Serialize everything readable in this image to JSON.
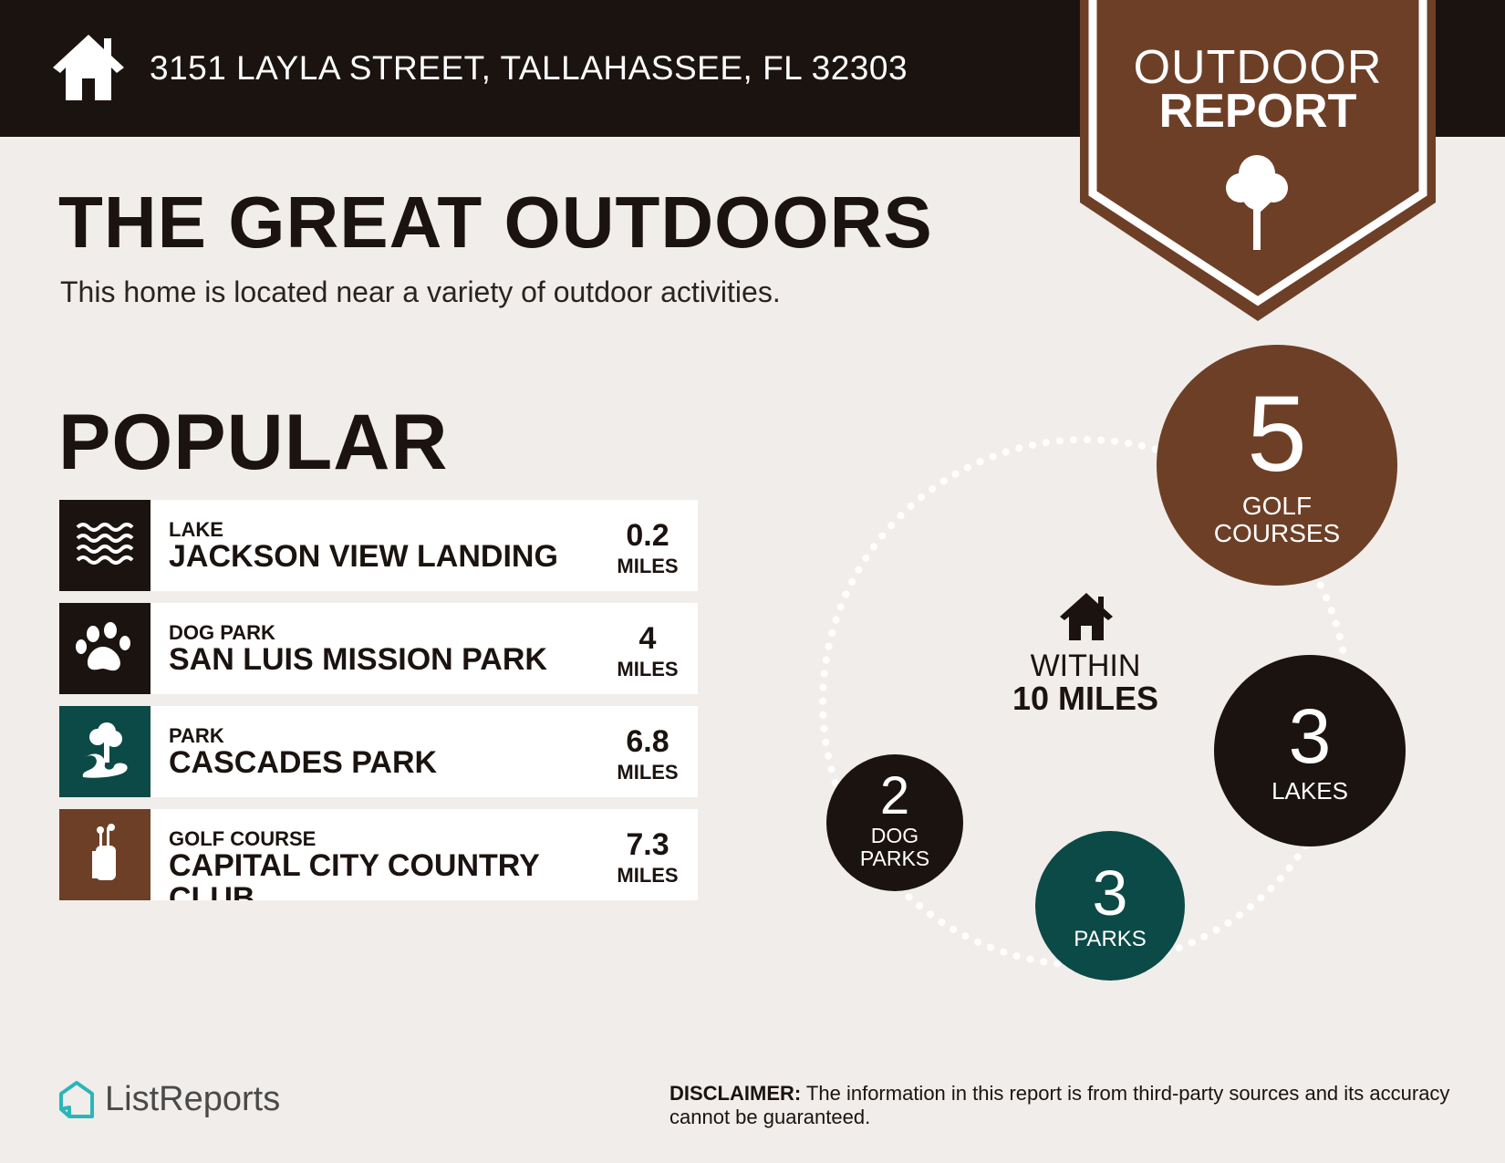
{
  "colors": {
    "dark": "#1b1310",
    "brown": "#6e3f27",
    "teal": "#0b4a46",
    "background": "#f1edea",
    "logo_teal": "#2bb6b8"
  },
  "header": {
    "address": "3151 LAYLA STREET, TALLAHASSEE, FL 32303",
    "icon": "home-icon"
  },
  "badge": {
    "line1": "OUTDOOR",
    "line2": "REPORT",
    "icon": "tree-icon"
  },
  "main": {
    "title": "THE GREAT OUTDOORS",
    "subtitle": "This home is located near a variety of outdoor activities."
  },
  "popular": {
    "title": "POPULAR",
    "items": [
      {
        "category": "LAKE",
        "name": "JACKSON VIEW LANDING",
        "distance": "0.2",
        "unit": "MILES",
        "icon": "waves-icon",
        "color": "#1b1310"
      },
      {
        "category": "DOG PARK",
        "name": "SAN LUIS MISSION PARK",
        "distance": "4",
        "unit": "MILES",
        "icon": "paw-icon",
        "color": "#1b1310"
      },
      {
        "category": "PARK",
        "name": "CASCADES PARK",
        "distance": "6.8",
        "unit": "MILES",
        "icon": "park-tree-icon",
        "color": "#0b4a46"
      },
      {
        "category": "GOLF COURSE",
        "name": "CAPITAL CITY COUNTRY CLUB",
        "distance": "7.3",
        "unit": "MILES",
        "icon": "golf-bag-icon",
        "color": "#6e3f27"
      }
    ]
  },
  "radius": {
    "line1": "WITHIN",
    "line2": "10 MILES",
    "icon": "home-icon",
    "counts": [
      {
        "value": "5",
        "line1": "GOLF",
        "line2": "COURSES",
        "color": "#6e3f27"
      },
      {
        "value": "3",
        "line1": "LAKES",
        "line2": "",
        "color": "#1b1310"
      },
      {
        "value": "3",
        "line1": "PARKS",
        "line2": "",
        "color": "#0b4a46"
      },
      {
        "value": "2",
        "line1": "DOG",
        "line2": "PARKS",
        "color": "#1b1310"
      }
    ]
  },
  "footer": {
    "brand": "ListReports",
    "disclaimer_label": "DISCLAIMER:",
    "disclaimer_text": " The information in this report is from third-party sources and its accuracy cannot be guaranteed."
  }
}
